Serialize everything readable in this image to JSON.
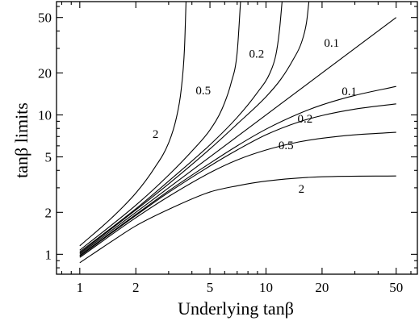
{
  "chart_data": {
    "type": "line",
    "title": "",
    "xlabel": "Underlying tanβ",
    "ylabel": "tanβ  limits",
    "x_scale": "log",
    "y_scale": "log",
    "xlim": [
      0.75,
      65
    ],
    "ylim": [
      0.72,
      65
    ],
    "grid": false,
    "x_ticks": [
      {
        "value": 1,
        "label": "1"
      },
      {
        "value": 2,
        "label": "2"
      },
      {
        "value": 5,
        "label": "5"
      },
      {
        "value": 10,
        "label": "10"
      },
      {
        "value": 20,
        "label": "20"
      },
      {
        "value": 50,
        "label": "50"
      }
    ],
    "y_ticks": [
      {
        "value": 1,
        "label": "1"
      },
      {
        "value": 2,
        "label": "2"
      },
      {
        "value": 5,
        "label": "5"
      },
      {
        "value": 10,
        "label": "10"
      },
      {
        "value": 20,
        "label": "20"
      },
      {
        "value": 50,
        "label": "50"
      }
    ],
    "series": [
      {
        "label": "",
        "x": [
          1,
          2,
          5,
          10,
          20,
          50
        ],
        "y": [
          1,
          2,
          5,
          10,
          20,
          50
        ]
      },
      {
        "label": "0.1",
        "x": [
          1,
          2,
          3,
          5,
          7,
          10,
          12,
          14,
          15.5,
          16.5,
          17
        ],
        "y": [
          1.02,
          2.08,
          3.2,
          5.7,
          8.6,
          13.5,
          18,
          25,
          33,
          46,
          65
        ]
      },
      {
        "label": "0.2",
        "x": [
          1,
          2,
          3,
          5,
          7,
          9,
          10.5,
          11.3,
          11.8,
          12.2
        ],
        "y": [
          1.04,
          2.12,
          3.35,
          6.1,
          9.6,
          14.5,
          20,
          27,
          40,
          65
        ]
      },
      {
        "label": "0.5",
        "x": [
          1,
          2,
          3,
          4,
          5,
          5.8,
          6.5,
          7,
          7.3
        ],
        "y": [
          1.07,
          2.25,
          3.7,
          5.5,
          7.8,
          11,
          17,
          28,
          65
        ]
      },
      {
        "label": "2",
        "x": [
          1,
          1.5,
          2,
          2.5,
          3,
          3.3,
          3.5,
          3.65,
          3.72
        ],
        "y": [
          1.15,
          1.85,
          2.75,
          4.1,
          6.3,
          9.5,
          15,
          30,
          65
        ]
      },
      {
        "label": "0.1",
        "x": [
          1,
          2,
          3,
          5,
          7,
          10,
          15,
          20,
          30,
          50
        ],
        "y": [
          0.98,
          1.93,
          2.85,
          4.5,
          6,
          7.9,
          10.2,
          11.8,
          13.8,
          16
        ]
      },
      {
        "label": "0.2",
        "x": [
          1,
          2,
          3,
          5,
          7,
          10,
          15,
          20,
          30,
          50
        ],
        "y": [
          0.97,
          1.9,
          2.78,
          4.3,
          5.6,
          7.2,
          8.9,
          9.9,
          11,
          12
        ]
      },
      {
        "label": "0.5",
        "x": [
          1,
          2,
          3,
          5,
          7,
          10,
          15,
          20,
          30,
          50
        ],
        "y": [
          0.95,
          1.83,
          2.6,
          3.85,
          4.75,
          5.6,
          6.4,
          6.8,
          7.2,
          7.5
        ]
      },
      {
        "label": "2",
        "x": [
          1,
          1.5,
          2,
          3,
          5,
          7,
          10,
          20,
          50
        ],
        "y": [
          0.87,
          1.25,
          1.6,
          2.1,
          2.8,
          3.1,
          3.35,
          3.6,
          3.65
        ]
      }
    ]
  }
}
